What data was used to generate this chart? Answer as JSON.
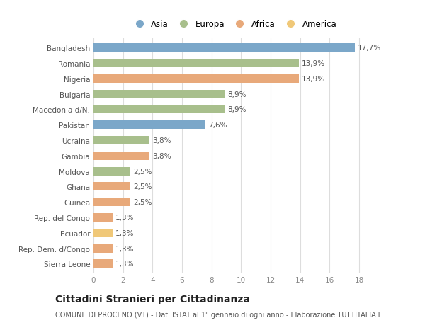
{
  "categories": [
    "Bangladesh",
    "Romania",
    "Nigeria",
    "Bulgaria",
    "Macedonia d/N.",
    "Pakistan",
    "Ucraina",
    "Gambia",
    "Moldova",
    "Ghana",
    "Guinea",
    "Rep. del Congo",
    "Ecuador",
    "Rep. Dem. d/Congo",
    "Sierra Leone"
  ],
  "values": [
    17.7,
    13.9,
    13.9,
    8.9,
    8.9,
    7.6,
    3.8,
    3.8,
    2.5,
    2.5,
    2.5,
    1.3,
    1.3,
    1.3,
    1.3
  ],
  "labels": [
    "17,7%",
    "13,9%",
    "13,9%",
    "8,9%",
    "8,9%",
    "7,6%",
    "3,8%",
    "3,8%",
    "2,5%",
    "2,5%",
    "2,5%",
    "1,3%",
    "1,3%",
    "1,3%",
    "1,3%"
  ],
  "colors": [
    "#7ba7c9",
    "#a8bf8c",
    "#e8a97a",
    "#a8bf8c",
    "#a8bf8c",
    "#7ba7c9",
    "#a8bf8c",
    "#e8a97a",
    "#a8bf8c",
    "#e8a97a",
    "#e8a97a",
    "#e8a97a",
    "#f0c878",
    "#e8a97a",
    "#e8a97a"
  ],
  "legend": [
    {
      "label": "Asia",
      "color": "#7ba7c9"
    },
    {
      "label": "Europa",
      "color": "#a8bf8c"
    },
    {
      "label": "Africa",
      "color": "#e8a97a"
    },
    {
      "label": "America",
      "color": "#f0c878"
    }
  ],
  "xlim": [
    0,
    19
  ],
  "xticks": [
    0,
    2,
    4,
    6,
    8,
    10,
    12,
    14,
    16,
    18
  ],
  "title": "Cittadini Stranieri per Cittadinanza",
  "subtitle": "COMUNE DI PROCENO (VT) - Dati ISTAT al 1° gennaio di ogni anno - Elaborazione TUTTITALIA.IT",
  "background_color": "#ffffff",
  "bar_height": 0.55,
  "label_fontsize": 7.5,
  "tick_fontsize": 7.5,
  "title_fontsize": 10,
  "subtitle_fontsize": 7
}
